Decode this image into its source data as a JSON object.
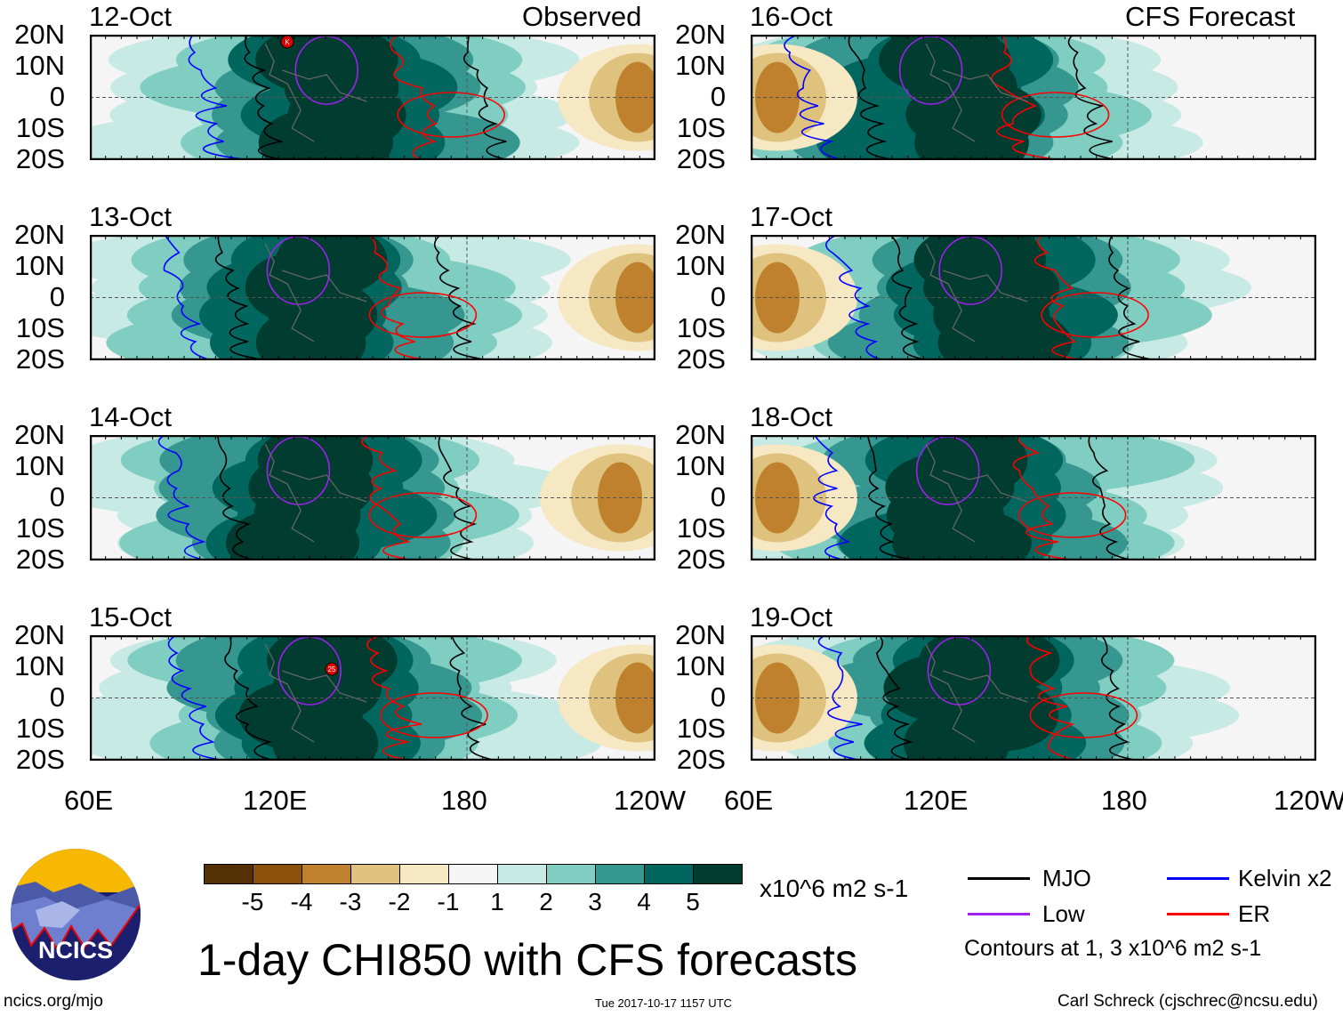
{
  "headers": {
    "observed": "Observed",
    "forecast": "CFS Forecast"
  },
  "y_ticks": [
    "20N",
    "10N",
    "0",
    "10S",
    "20S"
  ],
  "x_ticks": [
    "60E",
    "120E",
    "180",
    "120W"
  ],
  "panels_left": [
    {
      "date": "12-Oct",
      "storm_marker": "K"
    },
    {
      "date": "13-Oct"
    },
    {
      "date": "14-Oct"
    },
    {
      "date": "15-Oct",
      "storm_marker": "25"
    }
  ],
  "panels_right": [
    {
      "date": "16-Oct"
    },
    {
      "date": "17-Oct"
    },
    {
      "date": "18-Oct"
    },
    {
      "date": "19-Oct"
    }
  ],
  "colorbar": {
    "colors": [
      "#543005",
      "#8c510a",
      "#bf812d",
      "#dfc27d",
      "#f6e8c3",
      "#f5f5f5",
      "#c7eae5",
      "#80cdc1",
      "#35978f",
      "#01665e",
      "#003c30"
    ],
    "labels": [
      "-5",
      "-4",
      "-3",
      "-2",
      "-1",
      "1",
      "2",
      "3",
      "4",
      "5"
    ],
    "units": "x10^6 m2 s-1"
  },
  "legend": {
    "items": [
      {
        "label": "MJO",
        "color": "#000000"
      },
      {
        "label": "Kelvin x2",
        "color": "#0000ff"
      },
      {
        "label": "Low",
        "color": "#a020f0"
      },
      {
        "label": "ER",
        "color": "#ff0000"
      }
    ],
    "contours_note": "Contours at 1, 3 x10^6 m2 s-1"
  },
  "logo": {
    "text": "NCICS"
  },
  "title": "1-day CHI850 with CFS forecasts",
  "footer": {
    "url": "ncics.org/mjo",
    "timestamp": "Tue 2017-10-17 1157 UTC",
    "credit": "Carl Schreck (cjschrec@ncsu.edu)"
  }
}
